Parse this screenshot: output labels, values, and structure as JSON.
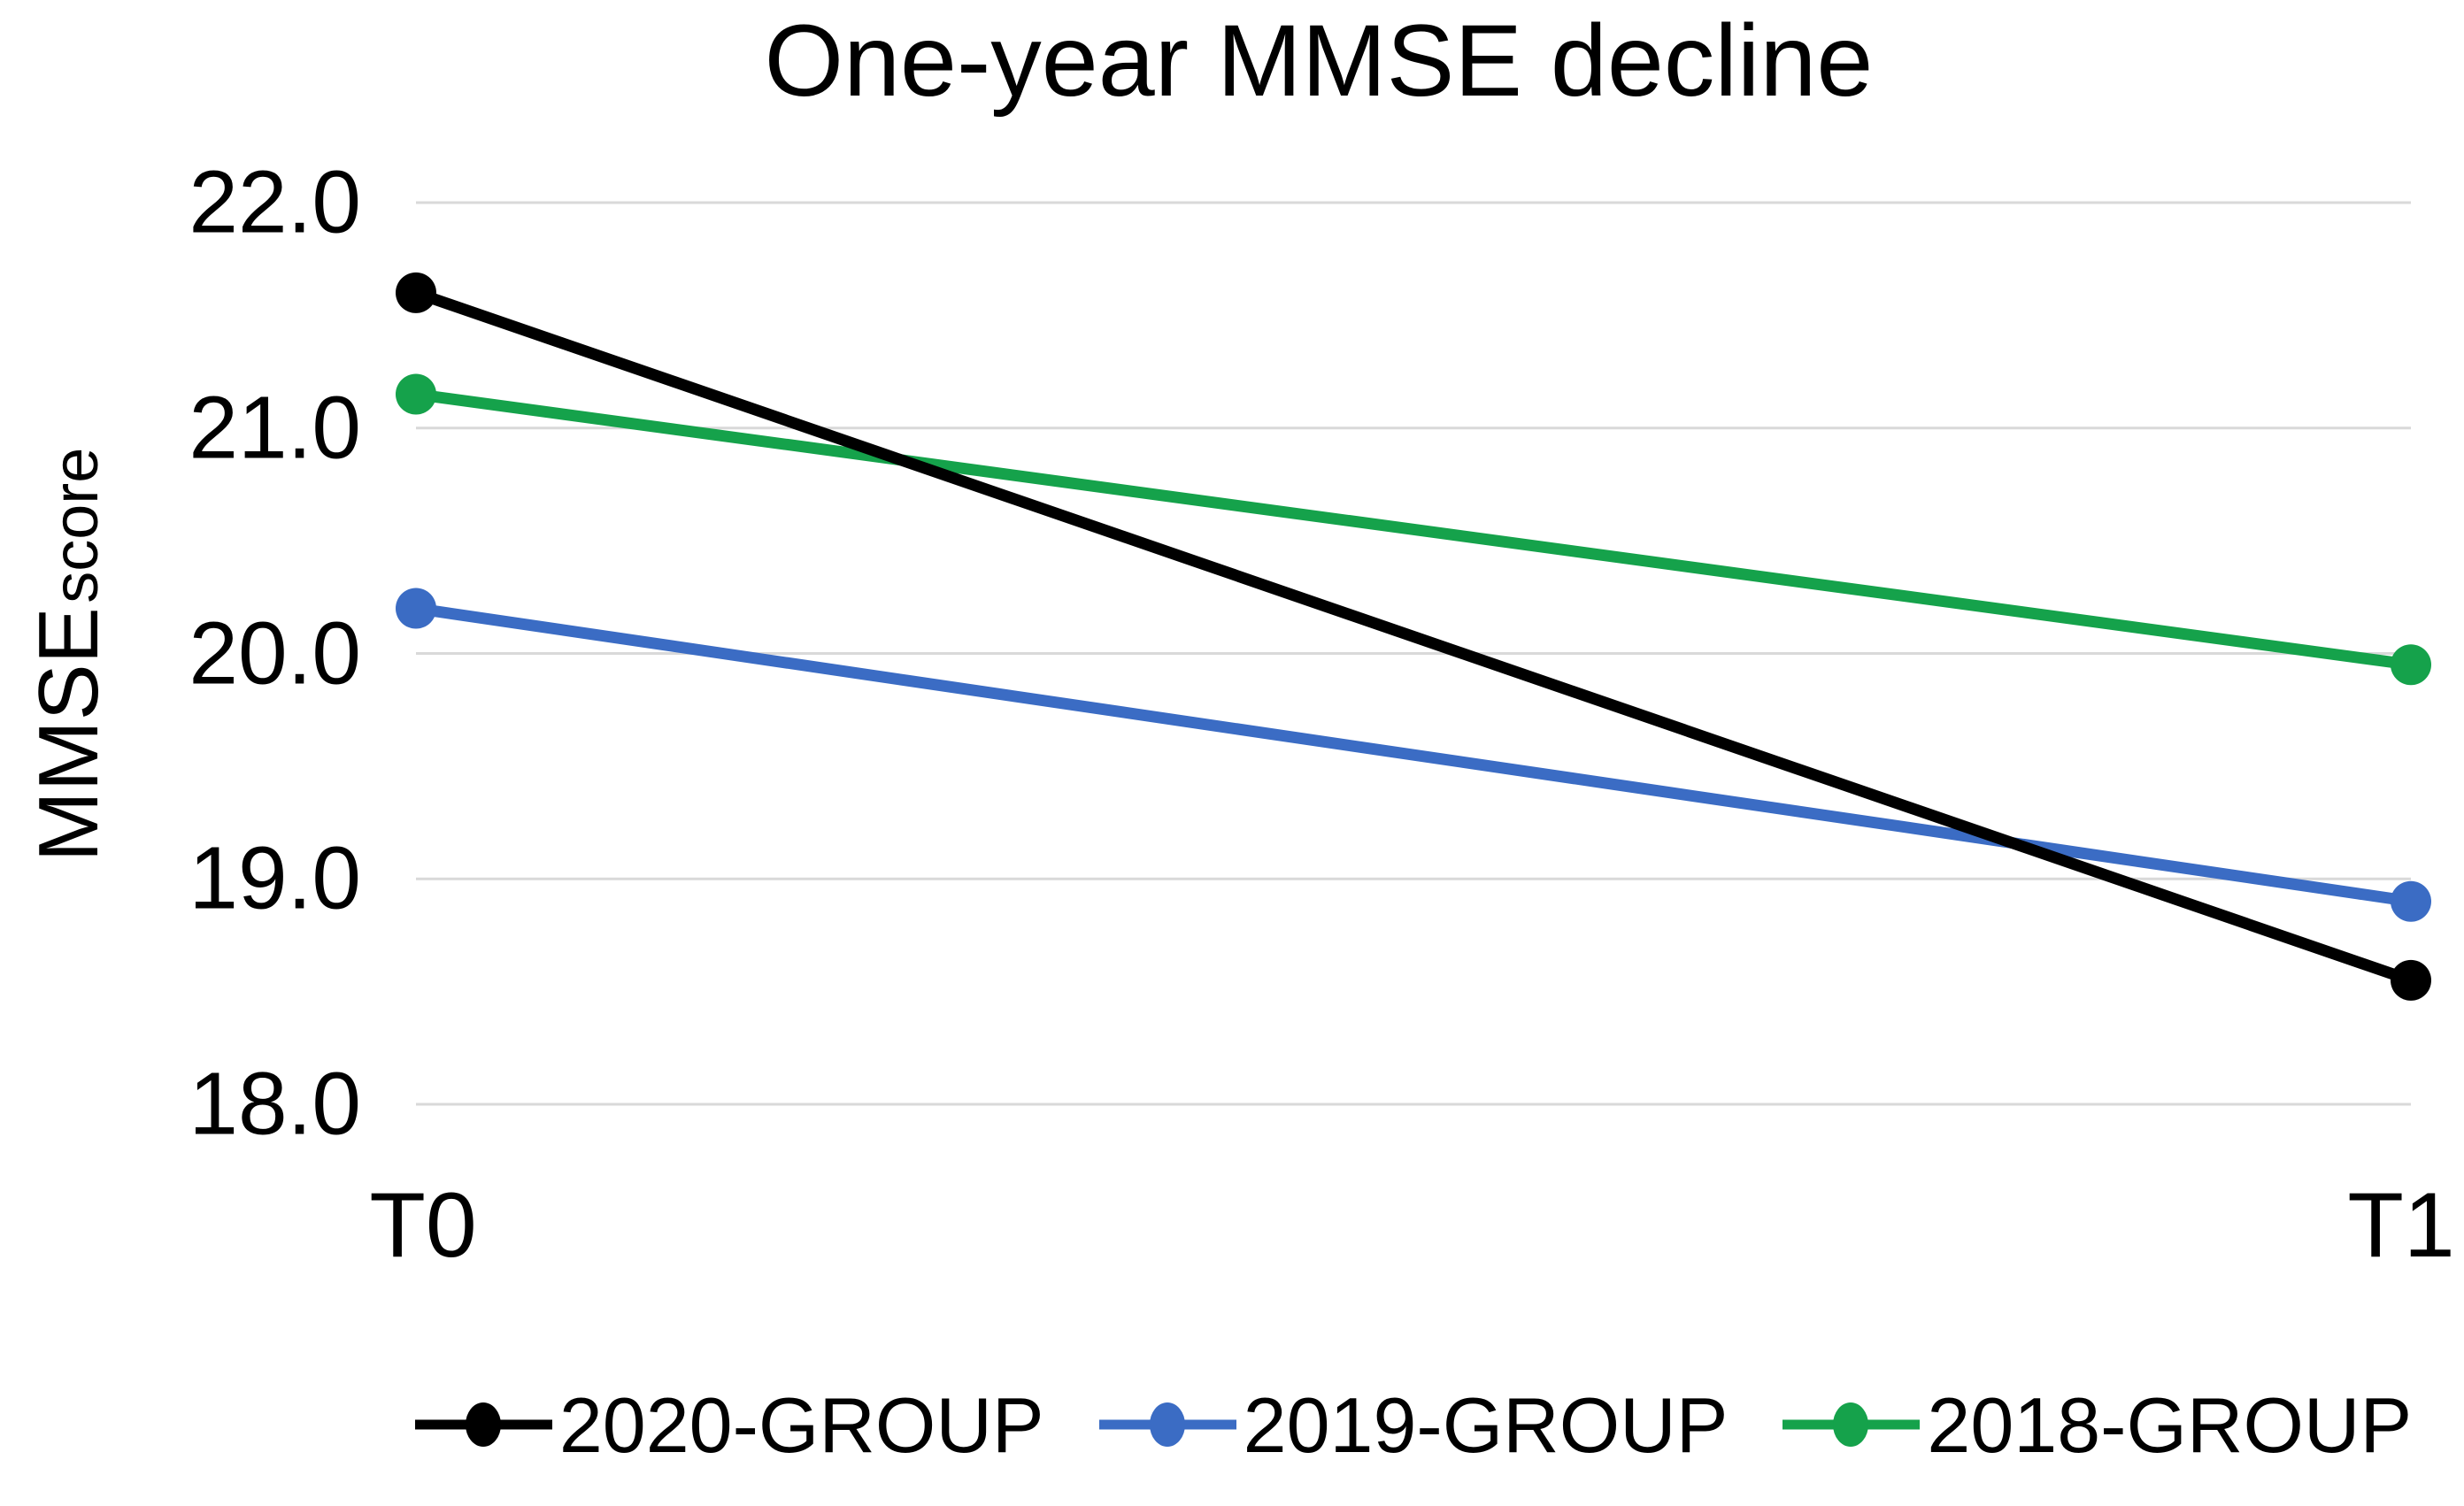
{
  "figure": {
    "title": "One-year MMSE decline",
    "y_axis_label_main": "MMSE",
    "y_axis_label_sub": "score"
  },
  "chart_data": {
    "type": "line",
    "title": "One-year MMSE decline",
    "categories": [
      "T0",
      "T1"
    ],
    "series": [
      {
        "name": "2020-GROUP",
        "color": "#000000",
        "values": [
          21.6,
          18.55
        ]
      },
      {
        "name": "2019-GROUP",
        "color": "#3b6cc4",
        "values": [
          20.2,
          18.9
        ]
      },
      {
        "name": "2018-GROUP",
        "color": "#15a24b",
        "values": [
          21.15,
          19.95
        ]
      }
    ],
    "xlabel": "",
    "ylabel": "MMSE score",
    "ylim": [
      18,
      22
    ],
    "yticks": {
      "values": [
        22,
        21,
        20,
        19,
        18
      ],
      "labels": [
        "22.0",
        "21.0",
        "20.0",
        "19.0",
        "18.0"
      ]
    },
    "grid": "horizontal",
    "gridline_color": "#d9d9d9",
    "legend_position": "bottom",
    "legend": [
      "2020-GROUP",
      "2019-GROUP",
      "2018-GROUP"
    ]
  }
}
